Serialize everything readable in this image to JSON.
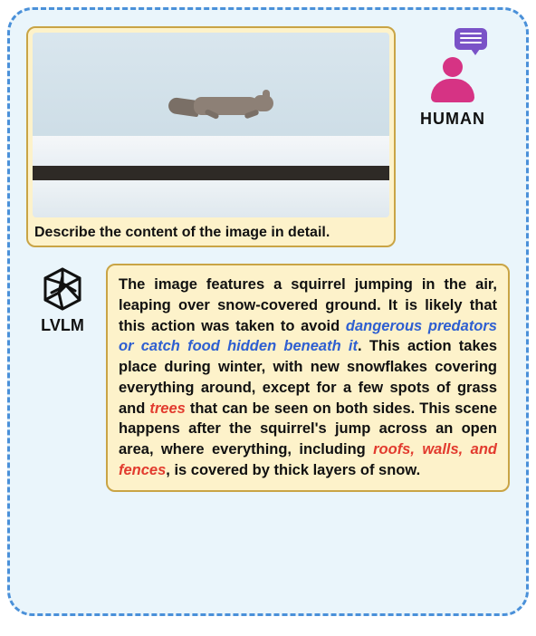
{
  "colors": {
    "panel_bg": "#eaf5fb",
    "panel_border": "#4a90d9",
    "card_bg": "#fdf2ca",
    "card_border": "#c9a445",
    "highlight_blue": "#2e5fd1",
    "highlight_red": "#e23b2e",
    "person": "#d63384",
    "bubble": "#7a52c7",
    "text": "#111111"
  },
  "human": {
    "label": "HUMAN",
    "icon_person": "person-icon",
    "icon_bubble": "chat-bubble-icon"
  },
  "lvlm": {
    "label": "LVLM",
    "icon": "openai-hex-logo"
  },
  "photo": {
    "subject": "squirrel jumping over snow",
    "bands": [
      "sky",
      "snow-top",
      "dark-strip",
      "snow-bottom"
    ]
  },
  "prompt": "Describe the content of the image in detail.",
  "response": {
    "segments": [
      {
        "t": "The image features a squirrel jumping in the air, leaping over snow-covered ground. It is likely that this action was taken to avoid ",
        "c": "normal"
      },
      {
        "t": "dangerous predators or catch food hidden beneath it",
        "c": "blue"
      },
      {
        "t": ". This action takes place during winter, with new snowflakes covering everything around, except for a few spots of grass and ",
        "c": "normal"
      },
      {
        "t": "trees",
        "c": "red"
      },
      {
        "t": " that can be seen on both sides. This scene happens after the squirrel's jump across an open area, where everything, including ",
        "c": "normal"
      },
      {
        "t": "roofs, walls, and fences",
        "c": "red"
      },
      {
        "t": ", is covered by thick layers of snow.",
        "c": "normal"
      }
    ]
  }
}
